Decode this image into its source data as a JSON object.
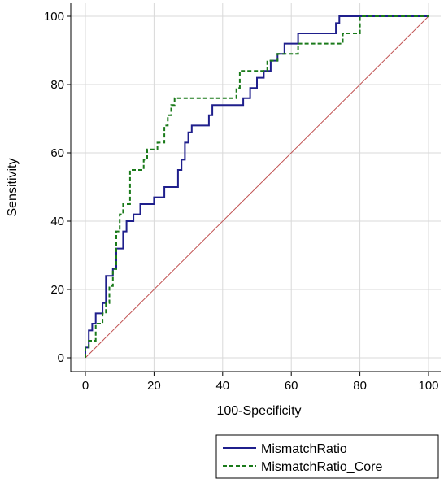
{
  "chart_data": {
    "type": "line",
    "title": "",
    "xlabel": "100-Specificity",
    "ylabel": "Sensitivity",
    "xlim": [
      0,
      100
    ],
    "ylim": [
      0,
      100
    ],
    "xticks": [
      "0",
      "20",
      "40",
      "60",
      "80",
      "100"
    ],
    "yticks": [
      "0",
      "20",
      "40",
      "60",
      "80",
      "100"
    ],
    "grid": true,
    "legend_position": "bottom-right",
    "reference_line": {
      "x": [
        0,
        100
      ],
      "y": [
        0,
        100
      ],
      "color": "#c05050"
    },
    "series": [
      {
        "name": "MismatchRatio",
        "color": "#1f1f8c",
        "style": "solid",
        "x": [
          0,
          0,
          1,
          1,
          2,
          2,
          3,
          3,
          5,
          5,
          6,
          6,
          8,
          8,
          9,
          9,
          11,
          11,
          12,
          12,
          14,
          14,
          16,
          16,
          20,
          20,
          23,
          23,
          27,
          27,
          28,
          28,
          29,
          29,
          30,
          30,
          31,
          31,
          36,
          36,
          37,
          37,
          46,
          46,
          48,
          48,
          50,
          50,
          52,
          52,
          54,
          54,
          56,
          56,
          58,
          58,
          60,
          60,
          62,
          62,
          73,
          73,
          74,
          74,
          100
        ],
        "y": [
          0,
          3,
          3,
          8,
          8,
          10,
          10,
          13,
          13,
          16,
          16,
          24,
          24,
          26,
          26,
          32,
          32,
          37,
          37,
          40,
          40,
          42,
          42,
          45,
          45,
          47,
          47,
          50,
          50,
          55,
          55,
          58,
          58,
          63,
          63,
          66,
          66,
          68,
          68,
          71,
          71,
          74,
          74,
          76,
          76,
          79,
          79,
          82,
          82,
          84,
          84,
          87,
          87,
          89,
          89,
          92,
          92,
          92,
          92,
          95,
          95,
          98,
          98,
          100,
          100
        ]
      },
      {
        "name": "MismatchRatio_Core",
        "color": "#1a7a1a",
        "style": "dashed",
        "x": [
          0,
          0,
          1,
          1,
          3,
          3,
          5,
          5,
          6,
          6,
          7,
          7,
          8,
          8,
          9,
          9,
          10,
          10,
          11,
          11,
          13,
          13,
          17,
          17,
          18,
          18,
          21,
          21,
          23,
          23,
          24,
          24,
          25,
          25,
          26,
          26,
          32,
          32,
          44,
          44,
          45,
          45,
          53,
          53,
          56,
          56,
          62,
          62,
          68,
          68,
          75,
          75,
          78,
          78,
          80,
          80,
          100
        ],
        "y": [
          0,
          3,
          3,
          5,
          5,
          10,
          10,
          13,
          13,
          16,
          16,
          21,
          21,
          26,
          26,
          37,
          37,
          42,
          42,
          45,
          45,
          55,
          55,
          58,
          58,
          61,
          61,
          63,
          63,
          68,
          68,
          71,
          71,
          74,
          74,
          76,
          76,
          76,
          76,
          79,
          79,
          84,
          84,
          87,
          87,
          89,
          89,
          92,
          92,
          92,
          92,
          95,
          95,
          95,
          95,
          100,
          100
        ]
      }
    ]
  }
}
